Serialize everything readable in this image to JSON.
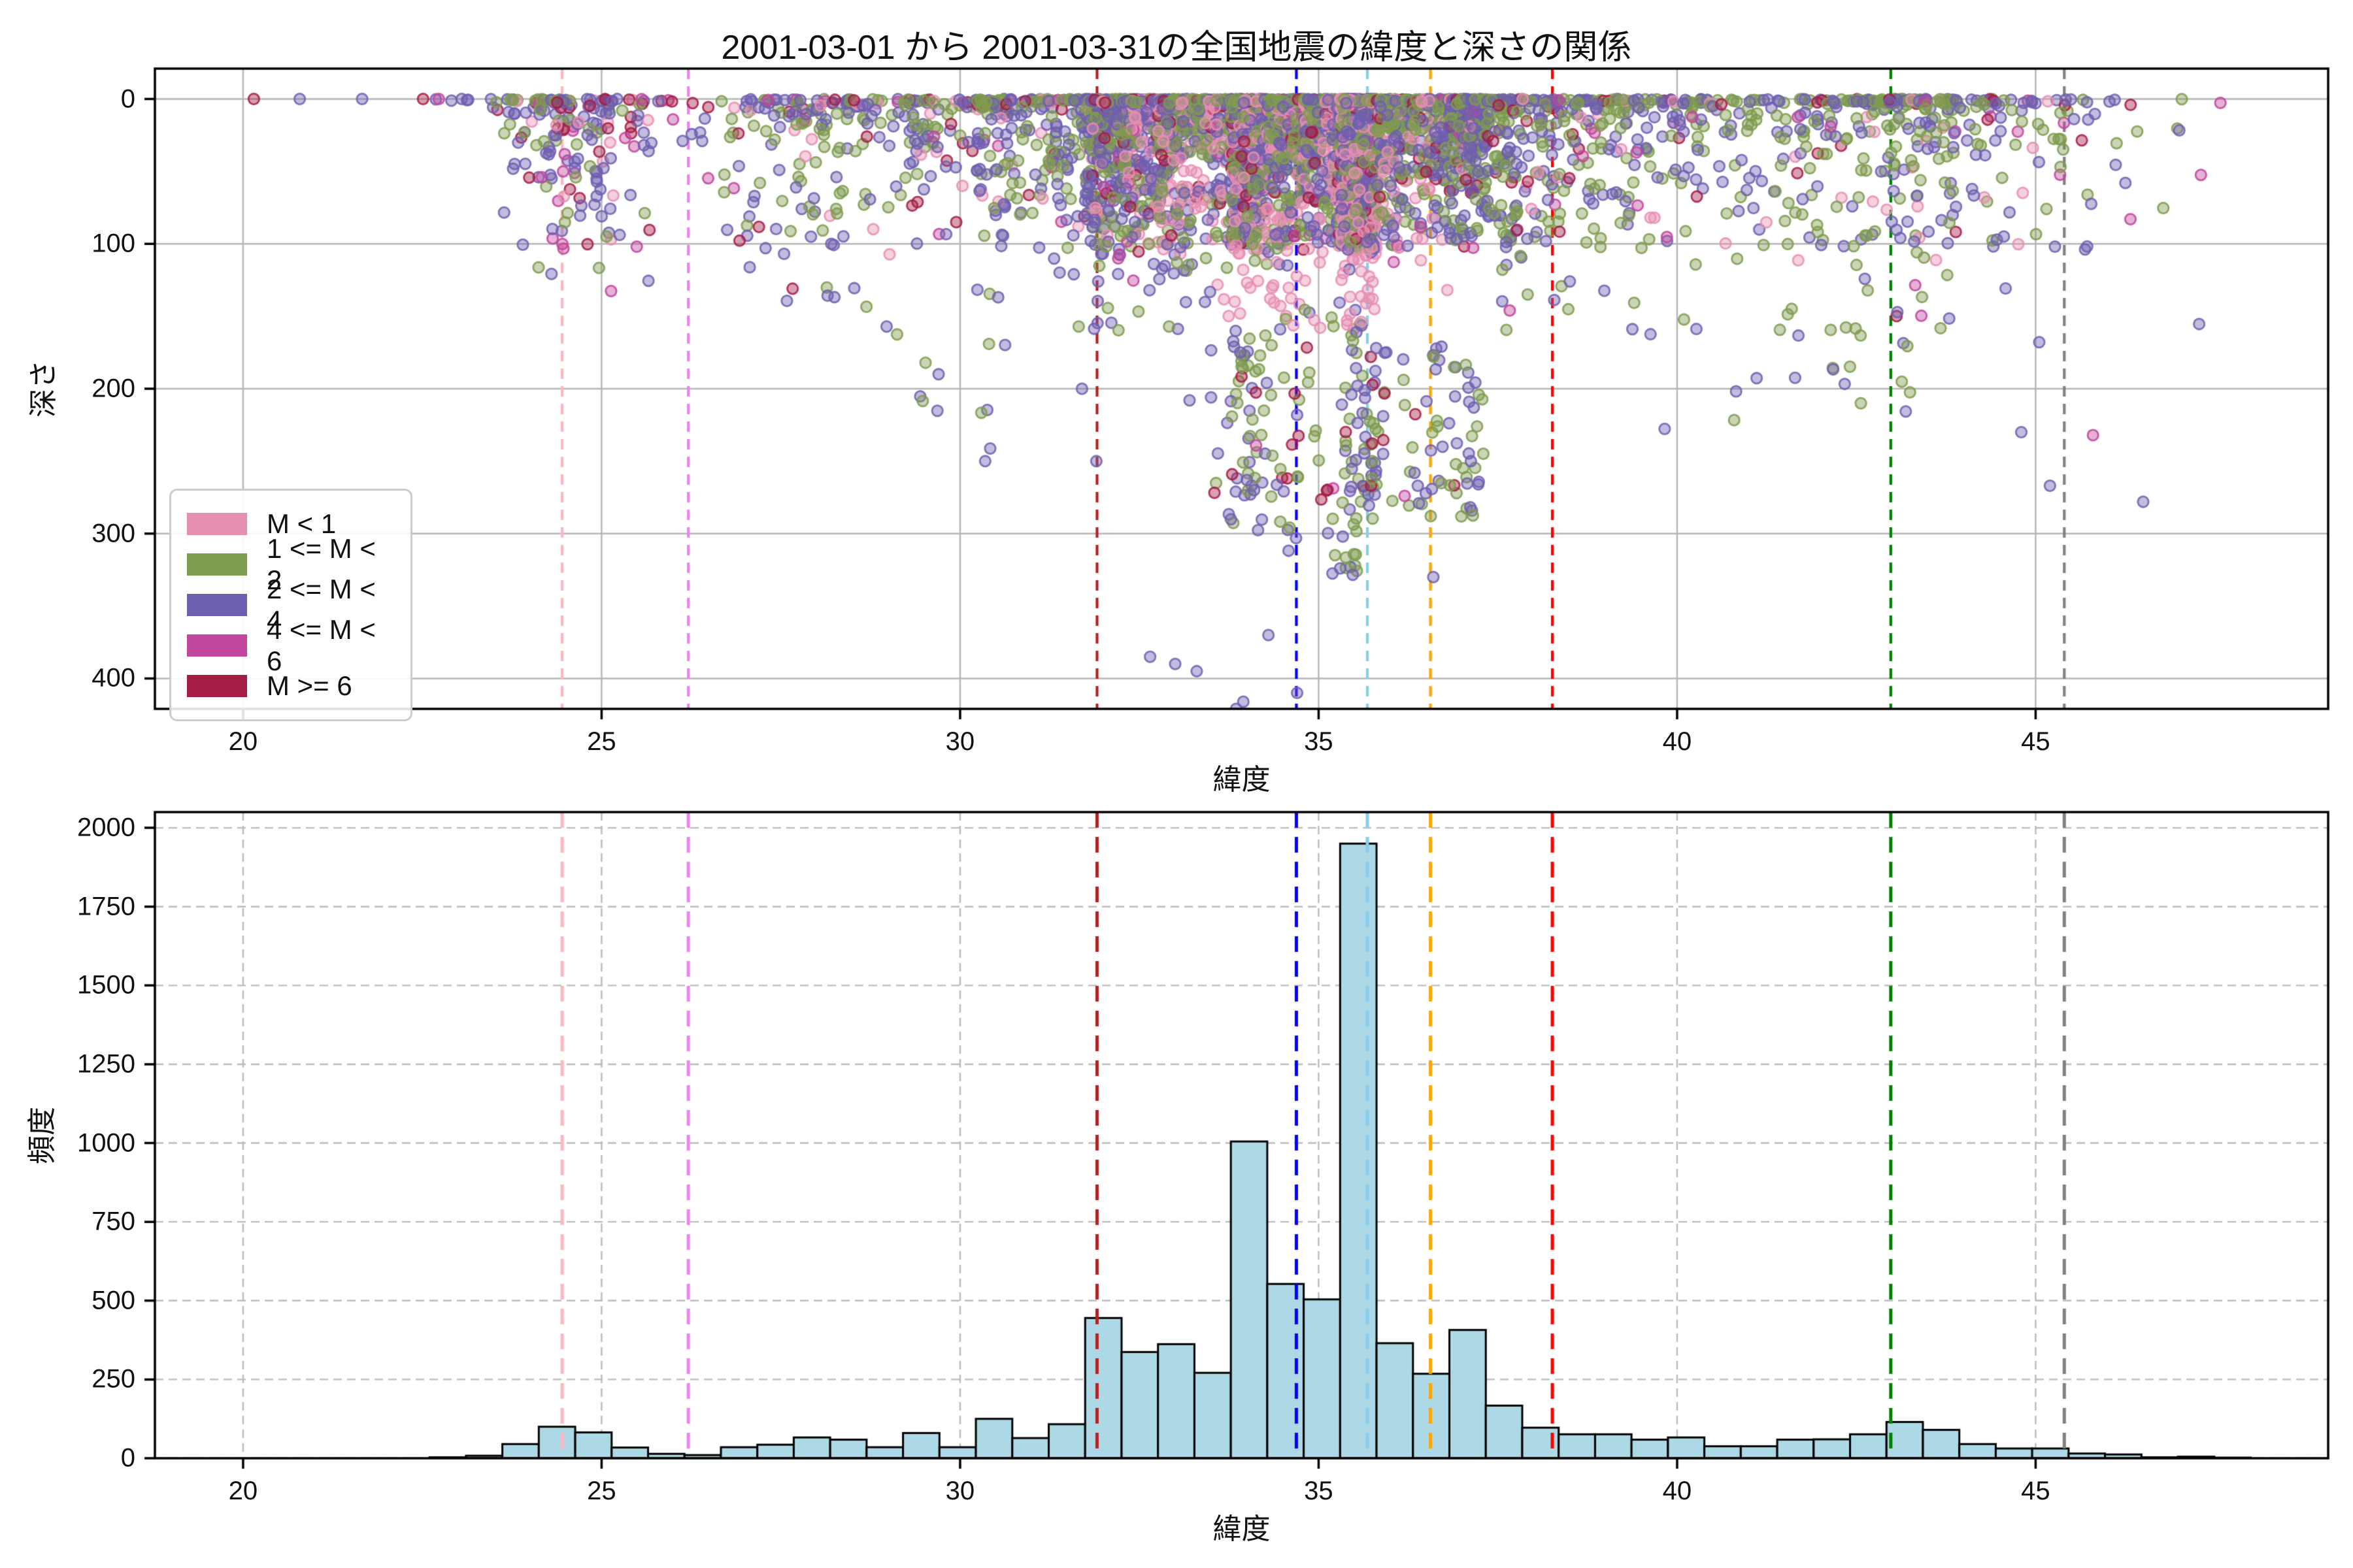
{
  "title": "2001-03-01 から 2001-03-31の全国地震の緯度と深さの関係",
  "axes": {
    "top": {
      "xlabel": "緯度",
      "ylabel": "深さ",
      "xticks": [
        20,
        25,
        30,
        35,
        40,
        45
      ],
      "yticks": [
        0,
        100,
        200,
        300,
        400
      ],
      "xlim": [
        18.77,
        49.08
      ],
      "ylim": [
        -21,
        421
      ],
      "grid": "solid"
    },
    "bottom": {
      "xlabel": "緯度",
      "ylabel": "頻度",
      "xticks": [
        20,
        25,
        30,
        35,
        40,
        45
      ],
      "yticks": [
        0,
        250,
        500,
        750,
        1000,
        1250,
        1500,
        1750,
        2000
      ],
      "xlim": [
        18.77,
        49.08
      ],
      "ylim": [
        0,
        2050
      ],
      "grid": "dashed"
    }
  },
  "legend": {
    "entries": [
      {
        "label": "M < 1",
        "color": "#E78FB3"
      },
      {
        "label": "1 <= M < 2",
        "color": "#7E9C4F"
      },
      {
        "label": "2 <= M < 4",
        "color": "#6F5FB0"
      },
      {
        "label": "4 <= M < 6",
        "color": "#C2459E"
      },
      {
        "label": "M >= 6",
        "color": "#A51C45"
      }
    ]
  },
  "vlines": [
    {
      "lat": 24.45,
      "color": "#FFB6C1"
    },
    {
      "lat": 26.21,
      "color": "#EE82EE"
    },
    {
      "lat": 31.91,
      "color": "#B22222"
    },
    {
      "lat": 34.69,
      "color": "#0000FF"
    },
    {
      "lat": 35.68,
      "color": "#87CEEB"
    },
    {
      "lat": 36.56,
      "color": "#FFA500"
    },
    {
      "lat": 38.26,
      "color": "#FF0000"
    },
    {
      "lat": 42.98,
      "color": "#008000"
    },
    {
      "lat": 45.4,
      "color": "#808080"
    }
  ],
  "style": {
    "hist_fill": "#ADD8E6",
    "hist_edge": "#000000",
    "grid_color": "#B5B5B5",
    "spine_color": "#000000",
    "marker_radius": 9.5,
    "marker_fill_alpha": 0.42,
    "marker_stroke_alpha": 0.8
  },
  "chart_data": [
    {
      "type": "scatter",
      "title": "2001-03-01 から 2001-03-31の全国地震の緯度と深さの関係",
      "xlabel": "緯度",
      "ylabel": "深さ",
      "xlim": [
        18.77,
        49.08
      ],
      "ylim_depth_inverted": [
        -21,
        421
      ],
      "legend_classes": [
        "M < 1",
        "1 <= M < 2",
        "2 <= M < 4",
        "4 <= M < 6",
        "M >= 6"
      ],
      "class_keys": [
        "pink",
        "olive",
        "purple",
        "magenta",
        "crimson"
      ],
      "class_colors": {
        "pink": "#E78FB3",
        "olive": "#7E9C4F",
        "purple": "#6F5FB0",
        "magenta": "#C2459E",
        "crimson": "#A51C45"
      },
      "generator": {
        "seed": 42,
        "points_per_hist_count": 0.7,
        "zero_line_below_lat": 23.4,
        "depth_profile": {
          "zero_frac": 0.2,
          "exp_frac": 0.5,
          "exp_scale": 26,
          "exp_cap": 118,
          "mid_frac": 0.21,
          "mid_range": [
            16,
            104
          ],
          "tail_frac": 0.09,
          "default_tail": [
            55,
            160
          ]
        },
        "deep_tails": [
          {
            "lat": [
              24.7,
              25.4
            ],
            "d": [
              60,
              135
            ]
          },
          {
            "lat": [
              28.4,
              29.4
            ],
            "d": [
              90,
              190
            ]
          },
          {
            "lat": [
              29.4,
              31.3
            ],
            "d": [
              130,
              255
            ]
          },
          {
            "lat": [
              33.5,
              34.5
            ],
            "d": [
              150,
              300
            ]
          },
          {
            "lat": [
              34.5,
              35.6
            ],
            "d": [
              140,
              330
            ]
          },
          {
            "lat": [
              35.6,
              37.3
            ],
            "d": [
              170,
              290
            ]
          },
          {
            "lat": [
              39.3,
              44.0
            ],
            "d": [
              95,
              230
            ]
          },
          {
            "lat": [
              44.0,
              45.5
            ],
            "d": [
              85,
              170
            ]
          }
        ],
        "class_weight_regions": [
          {
            "lat": [
              23.5,
              26.5
            ],
            "w": [
              0.1,
              0.18,
              0.52,
              0.08,
              0.12
            ]
          },
          {
            "lat": [
              26.5,
              32.3
            ],
            "w": [
              0.06,
              0.4,
              0.46,
              0.03,
              0.05
            ]
          },
          {
            "lat": [
              32.3,
              36.6
            ],
            "w": [
              0.28,
              0.3,
              0.34,
              0.02,
              0.06
            ]
          },
          {
            "lat": [
              38.0,
              44.0
            ],
            "w": [
              0.06,
              0.44,
              0.44,
              0.02,
              0.04
            ]
          },
          {
            "lat": [
              44.0,
              47.7
            ],
            "w": [
              0.04,
              0.22,
              0.55,
              0.06,
              0.13
            ]
          }
        ],
        "default_class_weights": [
          0.05,
          0.36,
          0.5,
          0.02,
          0.07
        ]
      },
      "notable_points": [
        {
          "lat": 20.15,
          "depth": 0,
          "class": "crimson"
        },
        {
          "lat": 20.79,
          "depth": 0,
          "class": "purple"
        },
        {
          "lat": 21.66,
          "depth": 0,
          "class": "purple"
        },
        {
          "lat": 22.51,
          "depth": 0,
          "class": "crimson"
        },
        {
          "lat": 22.73,
          "depth": 0,
          "class": "magenta"
        },
        {
          "lat": 23.05,
          "depth": 0,
          "class": "purple"
        },
        {
          "lat": 29.7,
          "depth": 190,
          "class": "purple"
        },
        {
          "lat": 30.35,
          "depth": 250,
          "class": "purple"
        },
        {
          "lat": 31.7,
          "depth": 200,
          "class": "purple"
        },
        {
          "lat": 31.9,
          "depth": 250,
          "class": "purple"
        },
        {
          "lat": 32.65,
          "depth": 385,
          "class": "purple"
        },
        {
          "lat": 33.0,
          "depth": 390,
          "class": "purple"
        },
        {
          "lat": 33.2,
          "depth": 208,
          "class": "purple"
        },
        {
          "lat": 33.3,
          "depth": 395,
          "class": "purple"
        },
        {
          "lat": 33.5,
          "depth": 206,
          "class": "purple"
        },
        {
          "lat": 33.85,
          "depth": 421,
          "class": "purple"
        },
        {
          "lat": 33.95,
          "depth": 416,
          "class": "purple"
        },
        {
          "lat": 34.0,
          "depth": 263,
          "class": "purple"
        },
        {
          "lat": 34.1,
          "depth": 270,
          "class": "purple"
        },
        {
          "lat": 34.3,
          "depth": 370,
          "class": "purple"
        },
        {
          "lat": 34.7,
          "depth": 218,
          "class": "purple"
        },
        {
          "lat": 34.7,
          "depth": 410,
          "class": "purple"
        },
        {
          "lat": 35.3,
          "depth": 324,
          "class": "purple"
        },
        {
          "lat": 35.9,
          "depth": 245,
          "class": "purple"
        },
        {
          "lat": 36.2,
          "depth": 274,
          "class": "magenta"
        },
        {
          "lat": 36.4,
          "depth": 279,
          "class": "purple"
        },
        {
          "lat": 36.6,
          "depth": 330,
          "class": "purple"
        },
        {
          "lat": 37.1,
          "depth": 209,
          "class": "purple"
        },
        {
          "lat": 44.8,
          "depth": 230,
          "class": "purple"
        },
        {
          "lat": 45.2,
          "depth": 267,
          "class": "purple"
        },
        {
          "lat": 45.8,
          "depth": 232,
          "class": "magenta"
        },
        {
          "lat": 46.5,
          "depth": 278,
          "class": "purple"
        }
      ]
    },
    {
      "type": "bar",
      "xlabel": "緯度",
      "ylabel": "頻度",
      "bin_start": 22.6,
      "bin_width": 0.508,
      "values": [
        3,
        8,
        45,
        100,
        82,
        34,
        14,
        10,
        35,
        43,
        66,
        59,
        35,
        80,
        35,
        125,
        64,
        108,
        445,
        337,
        362,
        271,
        1005,
        553,
        504,
        1950,
        365,
        268,
        407,
        167,
        97,
        76,
        76,
        59,
        66,
        38,
        38,
        59,
        60,
        76,
        115,
        90,
        45,
        31,
        31,
        15,
        12,
        3,
        5,
        2
      ],
      "ylim": [
        0,
        2050
      ]
    }
  ]
}
